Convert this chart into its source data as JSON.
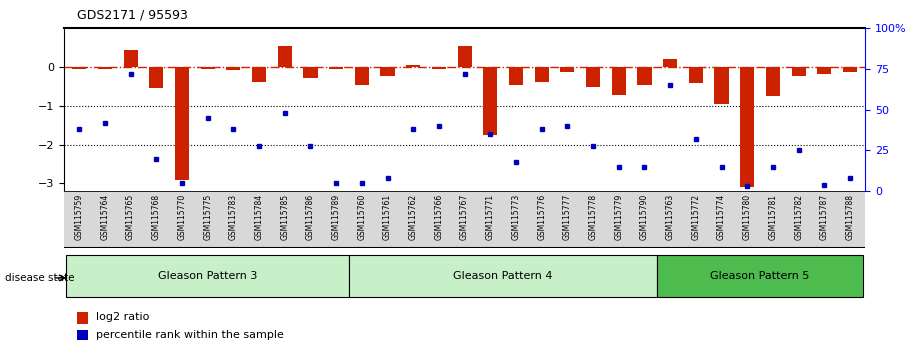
{
  "title": "GDS2171 / 95593",
  "samples": [
    "GSM115759",
    "GSM115764",
    "GSM115765",
    "GSM115768",
    "GSM115770",
    "GSM115775",
    "GSM115783",
    "GSM115784",
    "GSM115785",
    "GSM115786",
    "GSM115789",
    "GSM115760",
    "GSM115761",
    "GSM115762",
    "GSM115766",
    "GSM115767",
    "GSM115771",
    "GSM115773",
    "GSM115776",
    "GSM115777",
    "GSM115778",
    "GSM115779",
    "GSM115790",
    "GSM115763",
    "GSM115772",
    "GSM115774",
    "GSM115780",
    "GSM115781",
    "GSM115782",
    "GSM115787",
    "GSM115788"
  ],
  "log2_ratio": [
    -0.05,
    -0.05,
    0.45,
    -0.55,
    -2.9,
    -0.05,
    -0.08,
    -0.38,
    0.55,
    -0.28,
    -0.05,
    -0.45,
    -0.22,
    0.05,
    -0.05,
    0.55,
    -1.75,
    -0.45,
    -0.38,
    -0.12,
    -0.52,
    -0.72,
    -0.45,
    0.22,
    -0.42,
    -0.95,
    -3.1,
    -0.75,
    -0.22,
    -0.18,
    -0.12
  ],
  "percentile": [
    38,
    42,
    72,
    20,
    5,
    45,
    38,
    28,
    48,
    28,
    5,
    5,
    8,
    38,
    40,
    72,
    35,
    18,
    38,
    40,
    28,
    15,
    15,
    65,
    32,
    15,
    3,
    15,
    25,
    4,
    8
  ],
  "groups": [
    {
      "label": "Gleason Pattern 3",
      "start": 0,
      "end": 11,
      "color": "#c8f0c8"
    },
    {
      "label": "Gleason Pattern 4",
      "start": 11,
      "end": 23,
      "color": "#c8f0c8"
    },
    {
      "label": "Gleason Pattern 5",
      "start": 23,
      "end": 31,
      "color": "#4dbb4d"
    }
  ],
  "bar_color": "#cc2200",
  "dot_color": "#0000bb",
  "ref_line_color": "#cc2200",
  "ylim_left": [
    -3.2,
    1.0
  ],
  "ylim_right": [
    0,
    100
  ],
  "yticks_left": [
    -3,
    -2,
    -1,
    0
  ],
  "yticks_right": [
    0,
    25,
    50,
    75,
    100
  ],
  "hline_y": [
    -1,
    -2
  ],
  "bg_color": "#d8d8d8"
}
